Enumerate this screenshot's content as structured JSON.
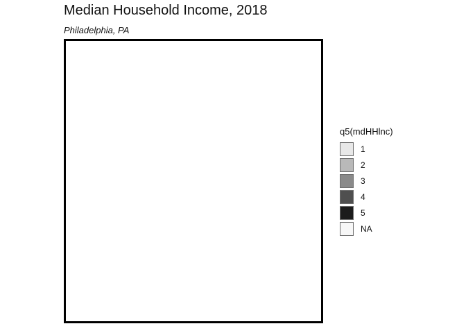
{
  "map": {
    "title": "Median Household Income, 2018",
    "subtitle": "Philadelphia, PA",
    "legend": {
      "title": "q5(mdHHlnc)",
      "items": [
        {
          "label": "1",
          "color": "#e8e8e8"
        },
        {
          "label": "2",
          "color": "#b9b9b9"
        },
        {
          "label": "3",
          "color": "#8a8a8a"
        },
        {
          "label": "4",
          "color": "#4f4f4f"
        },
        {
          "label": "5",
          "color": "#1c1c1c"
        },
        {
          "label": "NA",
          "color": "#f7f7f7"
        }
      ]
    }
  }
}
